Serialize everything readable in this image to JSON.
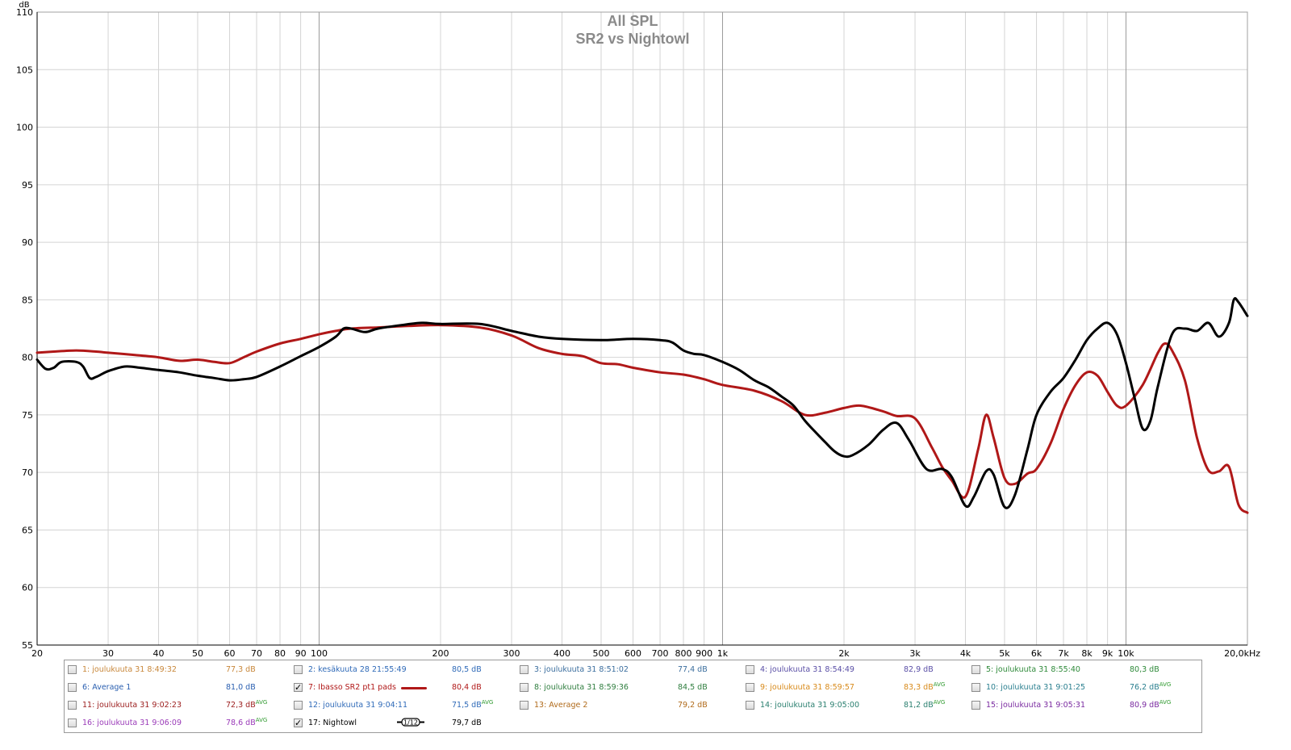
{
  "chart_data": {
    "type": "line",
    "title": "All SPL",
    "subtitle": "SR2 vs Nightowl",
    "ylabel": "dB",
    "y_ticks": [
      55,
      60,
      65,
      70,
      75,
      80,
      85,
      90,
      95,
      100,
      105,
      110
    ],
    "ylim": [
      55,
      110
    ],
    "xlim": [
      20,
      20000
    ],
    "x_scale": "log",
    "x_ticks": [
      {
        "v": 20,
        "label": "20"
      },
      {
        "v": 30,
        "label": "30"
      },
      {
        "v": 40,
        "label": "40"
      },
      {
        "v": 50,
        "label": "50"
      },
      {
        "v": 60,
        "label": "60"
      },
      {
        "v": 70,
        "label": "70"
      },
      {
        "v": 80,
        "label": "80"
      },
      {
        "v": 90,
        "label": "90"
      },
      {
        "v": 100,
        "label": "100"
      },
      {
        "v": 200,
        "label": "200"
      },
      {
        "v": 300,
        "label": "300"
      },
      {
        "v": 400,
        "label": "400"
      },
      {
        "v": 500,
        "label": "500"
      },
      {
        "v": 600,
        "label": "600"
      },
      {
        "v": 700,
        "label": "700"
      },
      {
        "v": 800,
        "label": "800"
      },
      {
        "v": 900,
        "label": "900"
      },
      {
        "v": 1000,
        "label": "1k"
      },
      {
        "v": 2000,
        "label": "2k"
      },
      {
        "v": 3000,
        "label": "3k"
      },
      {
        "v": 4000,
        "label": "4k"
      },
      {
        "v": 5000,
        "label": "5k"
      },
      {
        "v": 6000,
        "label": "6k"
      },
      {
        "v": 7000,
        "label": "7k"
      },
      {
        "v": 8000,
        "label": "8k"
      },
      {
        "v": 9000,
        "label": "9k"
      },
      {
        "v": 10000,
        "label": "10k"
      },
      {
        "v": 20000,
        "label": "20,0kHz"
      }
    ],
    "grid": true,
    "series": [
      {
        "name": "7: Ibasso SR2 pt1 pads",
        "color": "#b01818",
        "points": [
          [
            20,
            80.4
          ],
          [
            22,
            80.5
          ],
          [
            25,
            80.6
          ],
          [
            28,
            80.5
          ],
          [
            30,
            80.4
          ],
          [
            35,
            80.2
          ],
          [
            40,
            80.0
          ],
          [
            45,
            79.7
          ],
          [
            50,
            79.8
          ],
          [
            55,
            79.6
          ],
          [
            60,
            79.5
          ],
          [
            65,
            80.0
          ],
          [
            70,
            80.5
          ],
          [
            80,
            81.2
          ],
          [
            90,
            81.6
          ],
          [
            100,
            82.0
          ],
          [
            110,
            82.3
          ],
          [
            120,
            82.5
          ],
          [
            140,
            82.6
          ],
          [
            160,
            82.7
          ],
          [
            200,
            82.8
          ],
          [
            250,
            82.6
          ],
          [
            300,
            81.9
          ],
          [
            350,
            80.8
          ],
          [
            400,
            80.3
          ],
          [
            450,
            80.1
          ],
          [
            500,
            79.5
          ],
          [
            550,
            79.4
          ],
          [
            600,
            79.1
          ],
          [
            700,
            78.7
          ],
          [
            800,
            78.5
          ],
          [
            900,
            78.1
          ],
          [
            1000,
            77.6
          ],
          [
            1200,
            77.1
          ],
          [
            1400,
            76.2
          ],
          [
            1600,
            75.0
          ],
          [
            1800,
            75.2
          ],
          [
            2000,
            75.6
          ],
          [
            2200,
            75.8
          ],
          [
            2500,
            75.3
          ],
          [
            2700,
            74.9
          ],
          [
            3000,
            74.7
          ],
          [
            3300,
            72.2
          ],
          [
            3500,
            70.5
          ],
          [
            3700,
            69.3
          ],
          [
            4000,
            67.9
          ],
          [
            4300,
            72.0
          ],
          [
            4500,
            75.0
          ],
          [
            4700,
            73.0
          ],
          [
            5000,
            69.5
          ],
          [
            5300,
            69.0
          ],
          [
            5700,
            69.9
          ],
          [
            6000,
            70.3
          ],
          [
            6500,
            72.5
          ],
          [
            7000,
            75.5
          ],
          [
            7500,
            77.6
          ],
          [
            8000,
            78.7
          ],
          [
            8500,
            78.4
          ],
          [
            9000,
            77.0
          ],
          [
            9500,
            75.8
          ],
          [
            10000,
            75.8
          ],
          [
            11000,
            77.6
          ],
          [
            12000,
            80.4
          ],
          [
            12500,
            81.2
          ],
          [
            13000,
            80.6
          ],
          [
            14000,
            78.0
          ],
          [
            15000,
            73.0
          ],
          [
            16000,
            70.2
          ],
          [
            17000,
            70.1
          ],
          [
            18000,
            70.5
          ],
          [
            19000,
            67.2
          ],
          [
            20000,
            66.5
          ]
        ]
      },
      {
        "name": "17: Nightowl",
        "color": "#000000",
        "points": [
          [
            20,
            79.8
          ],
          [
            21,
            79.0
          ],
          [
            22,
            79.1
          ],
          [
            23,
            79.6
          ],
          [
            25,
            79.6
          ],
          [
            26,
            79.2
          ],
          [
            27,
            78.2
          ],
          [
            28,
            78.3
          ],
          [
            30,
            78.8
          ],
          [
            33,
            79.2
          ],
          [
            36,
            79.1
          ],
          [
            40,
            78.9
          ],
          [
            45,
            78.7
          ],
          [
            50,
            78.4
          ],
          [
            55,
            78.2
          ],
          [
            60,
            78.0
          ],
          [
            65,
            78.1
          ],
          [
            70,
            78.3
          ],
          [
            80,
            79.2
          ],
          [
            90,
            80.1
          ],
          [
            100,
            80.9
          ],
          [
            110,
            81.8
          ],
          [
            115,
            82.5
          ],
          [
            120,
            82.5
          ],
          [
            130,
            82.2
          ],
          [
            140,
            82.5
          ],
          [
            160,
            82.8
          ],
          [
            180,
            83.0
          ],
          [
            200,
            82.9
          ],
          [
            250,
            82.9
          ],
          [
            300,
            82.3
          ],
          [
            350,
            81.8
          ],
          [
            400,
            81.6
          ],
          [
            500,
            81.5
          ],
          [
            600,
            81.6
          ],
          [
            700,
            81.5
          ],
          [
            750,
            81.3
          ],
          [
            800,
            80.6
          ],
          [
            850,
            80.3
          ],
          [
            900,
            80.2
          ],
          [
            1000,
            79.6
          ],
          [
            1100,
            78.9
          ],
          [
            1200,
            78.0
          ],
          [
            1300,
            77.4
          ],
          [
            1400,
            76.6
          ],
          [
            1500,
            75.8
          ],
          [
            1600,
            74.5
          ],
          [
            1700,
            73.5
          ],
          [
            1800,
            72.6
          ],
          [
            1900,
            71.8
          ],
          [
            2000,
            71.4
          ],
          [
            2100,
            71.5
          ],
          [
            2300,
            72.4
          ],
          [
            2500,
            73.7
          ],
          [
            2700,
            74.3
          ],
          [
            2900,
            72.8
          ],
          [
            3200,
            70.3
          ],
          [
            3500,
            70.3
          ],
          [
            3700,
            69.6
          ],
          [
            4000,
            67.1
          ],
          [
            4200,
            67.9
          ],
          [
            4500,
            70.1
          ],
          [
            4700,
            69.8
          ],
          [
            5000,
            67.0
          ],
          [
            5300,
            68.0
          ],
          [
            5700,
            72.0
          ],
          [
            6000,
            75.0
          ],
          [
            6500,
            77.0
          ],
          [
            7000,
            78.2
          ],
          [
            7500,
            79.8
          ],
          [
            8000,
            81.5
          ],
          [
            8500,
            82.5
          ],
          [
            9000,
            83.0
          ],
          [
            9500,
            82.0
          ],
          [
            10000,
            79.5
          ],
          [
            10500,
            76.5
          ],
          [
            11000,
            73.8
          ],
          [
            11500,
            74.5
          ],
          [
            12000,
            77.5
          ],
          [
            13000,
            82.0
          ],
          [
            14000,
            82.5
          ],
          [
            15000,
            82.3
          ],
          [
            16000,
            83.0
          ],
          [
            17000,
            81.8
          ],
          [
            18000,
            83.0
          ],
          [
            18500,
            85.0
          ],
          [
            19000,
            84.8
          ],
          [
            20000,
            83.6
          ]
        ]
      }
    ],
    "legend": [
      {
        "n": "1: joulukuuta 31 8:49:32",
        "v": "77,3 dB",
        "avg": false,
        "checked": false,
        "color": "#c8873a"
      },
      {
        "n": "2: kesäkuuta 28 21:55:49",
        "v": "80,5 dB",
        "avg": false,
        "checked": false,
        "color": "#2f6ab8"
      },
      {
        "n": "3: joulukuuta 31 8:51:02",
        "v": "77,4 dB",
        "avg": false,
        "checked": false,
        "color": "#3b6e9e"
      },
      {
        "n": "4: joulukuuta 31 8:54:49",
        "v": "82,9 dB",
        "avg": false,
        "checked": false,
        "color": "#5a4fa6"
      },
      {
        "n": "5: joulukuuta 31 8:55:40",
        "v": "80,3 dB",
        "avg": false,
        "checked": false,
        "color": "#2f8a3a"
      },
      {
        "n": "6: Average 1",
        "v": "81,0 dB",
        "avg": false,
        "checked": false,
        "color": "#2a5fb0"
      },
      {
        "n": "7: Ibasso SR2 pt1 pads",
        "v": "80,4 dB",
        "avg": false,
        "checked": true,
        "color": "#b01818",
        "swatch": "#b01818"
      },
      {
        "n": "8: joulukuuta 31 8:59:36",
        "v": "84,5 dB",
        "avg": false,
        "checked": false,
        "color": "#2e7d3e"
      },
      {
        "n": "9: joulukuuta 31 8:59:57",
        "v": "83,3 dB",
        "avg": true,
        "checked": false,
        "color": "#d88a1a"
      },
      {
        "n": "10: joulukuuta 31 9:01:25",
        "v": "76,2 dB",
        "avg": true,
        "checked": false,
        "color": "#2a7f8f"
      },
      {
        "n": "11: joulukuuta 31 9:02:23",
        "v": "72,3 dB",
        "avg": true,
        "checked": false,
        "color": "#9b1c1c"
      },
      {
        "n": "12: joulukuuta 31 9:04:11",
        "v": "71,5 dB",
        "avg": true,
        "checked": false,
        "color": "#2f6ab8"
      },
      {
        "n": "13: Average 2",
        "v": "79,2 dB",
        "avg": false,
        "checked": false,
        "color": "#b06a1a"
      },
      {
        "n": "14: joulukuuta 31 9:05:00",
        "v": "81,2 dB",
        "avg": true,
        "checked": false,
        "color": "#2a7f6f"
      },
      {
        "n": "15: joulukuuta 31 9:05:31",
        "v": "80,9 dB",
        "avg": true,
        "checked": false,
        "color": "#7a2aa0"
      },
      {
        "n": "16: joulukuuta 31 9:06:09",
        "v": "78,6 dB",
        "avg": true,
        "checked": false,
        "color": "#9a3ab8"
      },
      {
        "n": "17: Nightowl",
        "v": "79,7 dB",
        "avg": false,
        "checked": true,
        "color": "#000000",
        "smoothing": "1/12"
      }
    ],
    "avg_marker": "AVG",
    "check_mark": "✓"
  }
}
